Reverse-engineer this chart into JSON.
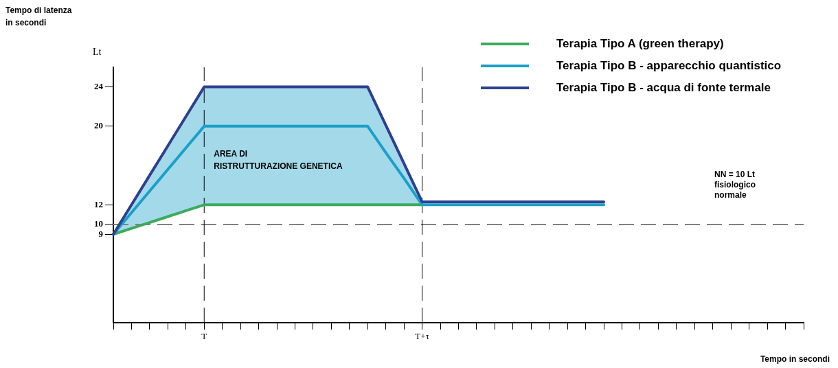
{
  "chart_data": {
    "type": "line",
    "ylabel": "Lt",
    "xlabel": "Tempo in secondi",
    "categories": [
      null,
      null,
      null,
      null,
      null,
      "T",
      null,
      null,
      null,
      null,
      null,
      null,
      null,
      null,
      null,
      null,
      null,
      "T+τ",
      null,
      null,
      null,
      null,
      null,
      null,
      null,
      null,
      null,
      null,
      null,
      null,
      null,
      null,
      null,
      null,
      null,
      null,
      null,
      null,
      null
    ],
    "series": [
      {
        "name": "Terapia Tipo A (green therapy)",
        "color": "#3daa5c",
        "values": [
          9,
          9.6,
          10.2,
          10.8,
          11.4,
          12,
          12,
          12,
          12,
          12,
          12,
          12,
          12,
          12,
          12,
          12,
          12,
          12,
          null,
          null,
          null,
          null,
          null,
          null,
          null,
          null,
          null,
          null,
          null,
          null,
          null,
          null,
          null,
          null,
          null,
          null,
          null,
          null,
          null
        ]
      },
      {
        "name": "Terapia Tipo B - apparecchio quantistico",
        "color": "#1aa0c8",
        "values": [
          9,
          11.2,
          13.4,
          15.6,
          17.8,
          20,
          20,
          20,
          20,
          20,
          20,
          20,
          20,
          20,
          20,
          17.3,
          14.7,
          12,
          12,
          12,
          12,
          12,
          12,
          12,
          12,
          12,
          12,
          12,
          null,
          null,
          null,
          null,
          null,
          null,
          null,
          null,
          null,
          null,
          null
        ],
        "lower": [
          9,
          9.6,
          10.2,
          10.8,
          11.4,
          12,
          12,
          12,
          12,
          12,
          12,
          12,
          12,
          12,
          12,
          12,
          12,
          12,
          null,
          null,
          null,
          null,
          null,
          null,
          null,
          null,
          null,
          null,
          null,
          null,
          null,
          null,
          null,
          null,
          null,
          null,
          null,
          null,
          null
        ],
        "upper": [
          9,
          12,
          15,
          18,
          21,
          24,
          24,
          24,
          24,
          24,
          24,
          24,
          24,
          24,
          24,
          20.1,
          16.2,
          12,
          null,
          null,
          null,
          null,
          null,
          null,
          null,
          null,
          null,
          null,
          null,
          null,
          null,
          null,
          null,
          null,
          null,
          null,
          null,
          null,
          null
        ]
      },
      {
        "name": "Terapia Tipo B - acqua di fonte termale",
        "color": "#2e3f8f",
        "values": [
          9,
          12,
          15,
          18,
          21,
          24,
          24,
          24,
          24,
          24,
          24,
          24,
          24,
          24,
          24,
          20.1,
          16.2,
          12.3,
          12.3,
          12.3,
          12.3,
          12.3,
          12.3,
          12.3,
          12.3,
          12.3,
          12.3,
          12.3,
          null,
          null,
          null,
          null,
          null,
          null,
          null,
          null,
          null,
          null,
          null
        ]
      }
    ],
    "ylim": [
      0,
      26
    ],
    "yticks": [
      9,
      10,
      12,
      20,
      24
    ],
    "ref_lines": [
      {
        "axis": "y",
        "value": 10,
        "label": "NN = 10 Lt fisiologico normale",
        "color": "#808080",
        "line_style": "dashed"
      },
      {
        "axis": "x",
        "value": "T",
        "color": "#000000",
        "line_style": "dashed"
      },
      {
        "axis": "x",
        "value": "T+τ",
        "color": "#000000",
        "line_style": "dashed"
      }
    ],
    "annotations": [
      "Tempo di latenza in secondi",
      {
        "text": "AREA DI RISTRUTTURAZIONE GENETICA",
        "x": "T",
        "y": 16.5
      }
    ],
    "grid": false,
    "legend": "top right",
    "marker": "none",
    "line_style": "solid"
  }
}
